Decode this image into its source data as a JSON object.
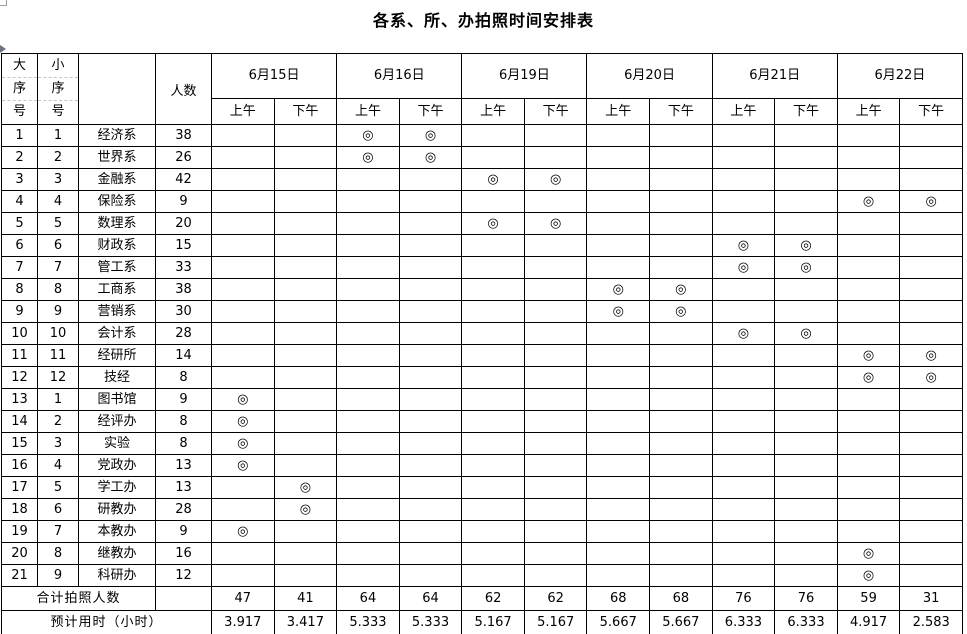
{
  "title": "各系、所、办拍照时间安排表",
  "colors": {
    "border": "#000000",
    "dashed_gridline": "#c4c4c4",
    "artifact_gray": "#9aa0a6"
  },
  "mark_symbol": "◎",
  "header": {
    "major_chars": [
      "大",
      "序",
      "号"
    ],
    "minor_chars": [
      "小",
      "序",
      "号"
    ],
    "name_col": "",
    "count_col": "人数",
    "dates": [
      "6月15日",
      "6月16日",
      "6月19日",
      "6月20日",
      "6月21日",
      "6月22日"
    ],
    "am_label": "上午",
    "pm_label": "下午"
  },
  "rows": [
    {
      "major": "1",
      "minor": "1",
      "name": "经济系",
      "count": "38",
      "marks": [
        3,
        4
      ]
    },
    {
      "major": "2",
      "minor": "2",
      "name": "世界系",
      "count": "26",
      "marks": [
        3,
        4
      ]
    },
    {
      "major": "3",
      "minor": "3",
      "name": "金融系",
      "count": "42",
      "marks": [
        5,
        6
      ]
    },
    {
      "major": "4",
      "minor": "4",
      "name": "保险系",
      "count": "9",
      "marks": [
        11,
        12
      ]
    },
    {
      "major": "5",
      "minor": "5",
      "name": "数理系",
      "count": "20",
      "marks": [
        5,
        6
      ]
    },
    {
      "major": "6",
      "minor": "6",
      "name": "财政系",
      "count": "15",
      "marks": [
        9,
        10
      ]
    },
    {
      "major": "7",
      "minor": "7",
      "name": "管工系",
      "count": "33",
      "marks": [
        9,
        10
      ]
    },
    {
      "major": "8",
      "minor": "8",
      "name": "工商系",
      "count": "38",
      "marks": [
        7,
        8
      ]
    },
    {
      "major": "9",
      "minor": "9",
      "name": "营销系",
      "count": "30",
      "marks": [
        7,
        8
      ]
    },
    {
      "major": "10",
      "minor": "10",
      "name": "会计系",
      "count": "28",
      "marks": [
        9,
        10
      ]
    },
    {
      "major": "11",
      "minor": "11",
      "name": "经研所",
      "count": "14",
      "marks": [
        11,
        12
      ]
    },
    {
      "major": "12",
      "minor": "12",
      "name": "技经",
      "count": "8",
      "marks": [
        11,
        12
      ]
    },
    {
      "major": "13",
      "minor": "1",
      "name": "图书馆",
      "count": "9",
      "marks": [
        1
      ]
    },
    {
      "major": "14",
      "minor": "2",
      "name": "经评办",
      "count": "8",
      "marks": [
        1
      ]
    },
    {
      "major": "15",
      "minor": "3",
      "name": "实验",
      "count": "8",
      "marks": [
        1
      ]
    },
    {
      "major": "16",
      "minor": "4",
      "name": "党政办",
      "count": "13",
      "marks": [
        1
      ]
    },
    {
      "major": "17",
      "minor": "5",
      "name": "学工办",
      "count": "13",
      "marks": [
        2
      ]
    },
    {
      "major": "18",
      "minor": "6",
      "name": "研教办",
      "count": "28",
      "marks": [
        2
      ]
    },
    {
      "major": "19",
      "minor": "7",
      "name": "本教办",
      "count": "9",
      "marks": [
        1
      ]
    },
    {
      "major": "20",
      "minor": "8",
      "name": "继教办",
      "count": "16",
      "marks": [
        11
      ]
    },
    {
      "major": "21",
      "minor": "9",
      "name": "科研办",
      "count": "12",
      "marks": [
        11
      ]
    }
  ],
  "totals": {
    "label": "合计拍照人数",
    "values": [
      "47",
      "41",
      "64",
      "64",
      "62",
      "62",
      "68",
      "68",
      "76",
      "76",
      "59",
      "31"
    ]
  },
  "hours": {
    "label": "预计用时（小时）",
    "values": [
      "3.917",
      "3.417",
      "5.333",
      "5.333",
      "5.167",
      "5.167",
      "5.667",
      "5.667",
      "6.333",
      "6.333",
      "4.917",
      "2.583"
    ]
  }
}
